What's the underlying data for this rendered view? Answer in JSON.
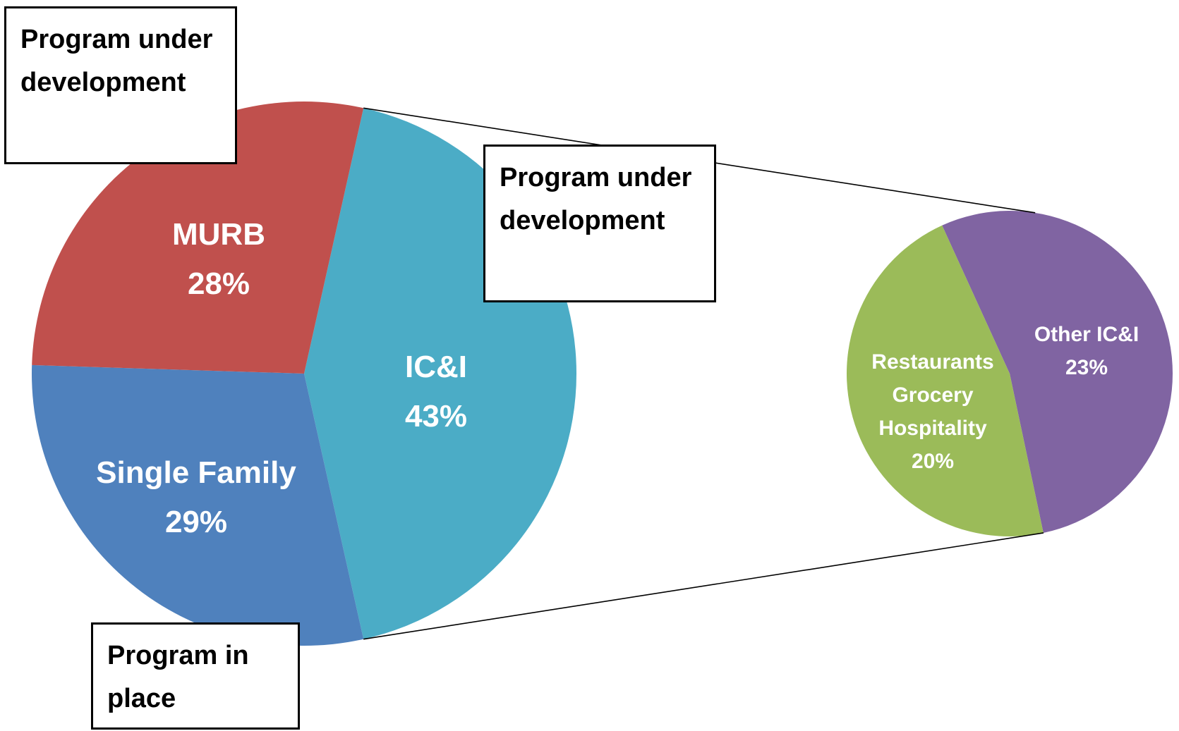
{
  "chart_data": {
    "type": "pie-of-pie",
    "categories": [
      "MURB",
      "Single Family",
      "IC&I"
    ],
    "values": [
      28,
      29,
      43
    ],
    "value_labels": [
      "28%",
      "29%",
      "43%"
    ],
    "colors": [
      "#c0504d",
      "#4f81bd",
      "#4bacc6"
    ],
    "secondary": {
      "categories": [
        "Restaurants Grocery Hospitality",
        "Other IC&I"
      ],
      "values": [
        20,
        23
      ],
      "value_labels": [
        "20%",
        "23%"
      ],
      "colors": [
        "#9bbb59",
        "#8064a2"
      ]
    },
    "annotations": [
      "Program under development",
      "Program under development",
      "Program in place"
    ]
  }
}
